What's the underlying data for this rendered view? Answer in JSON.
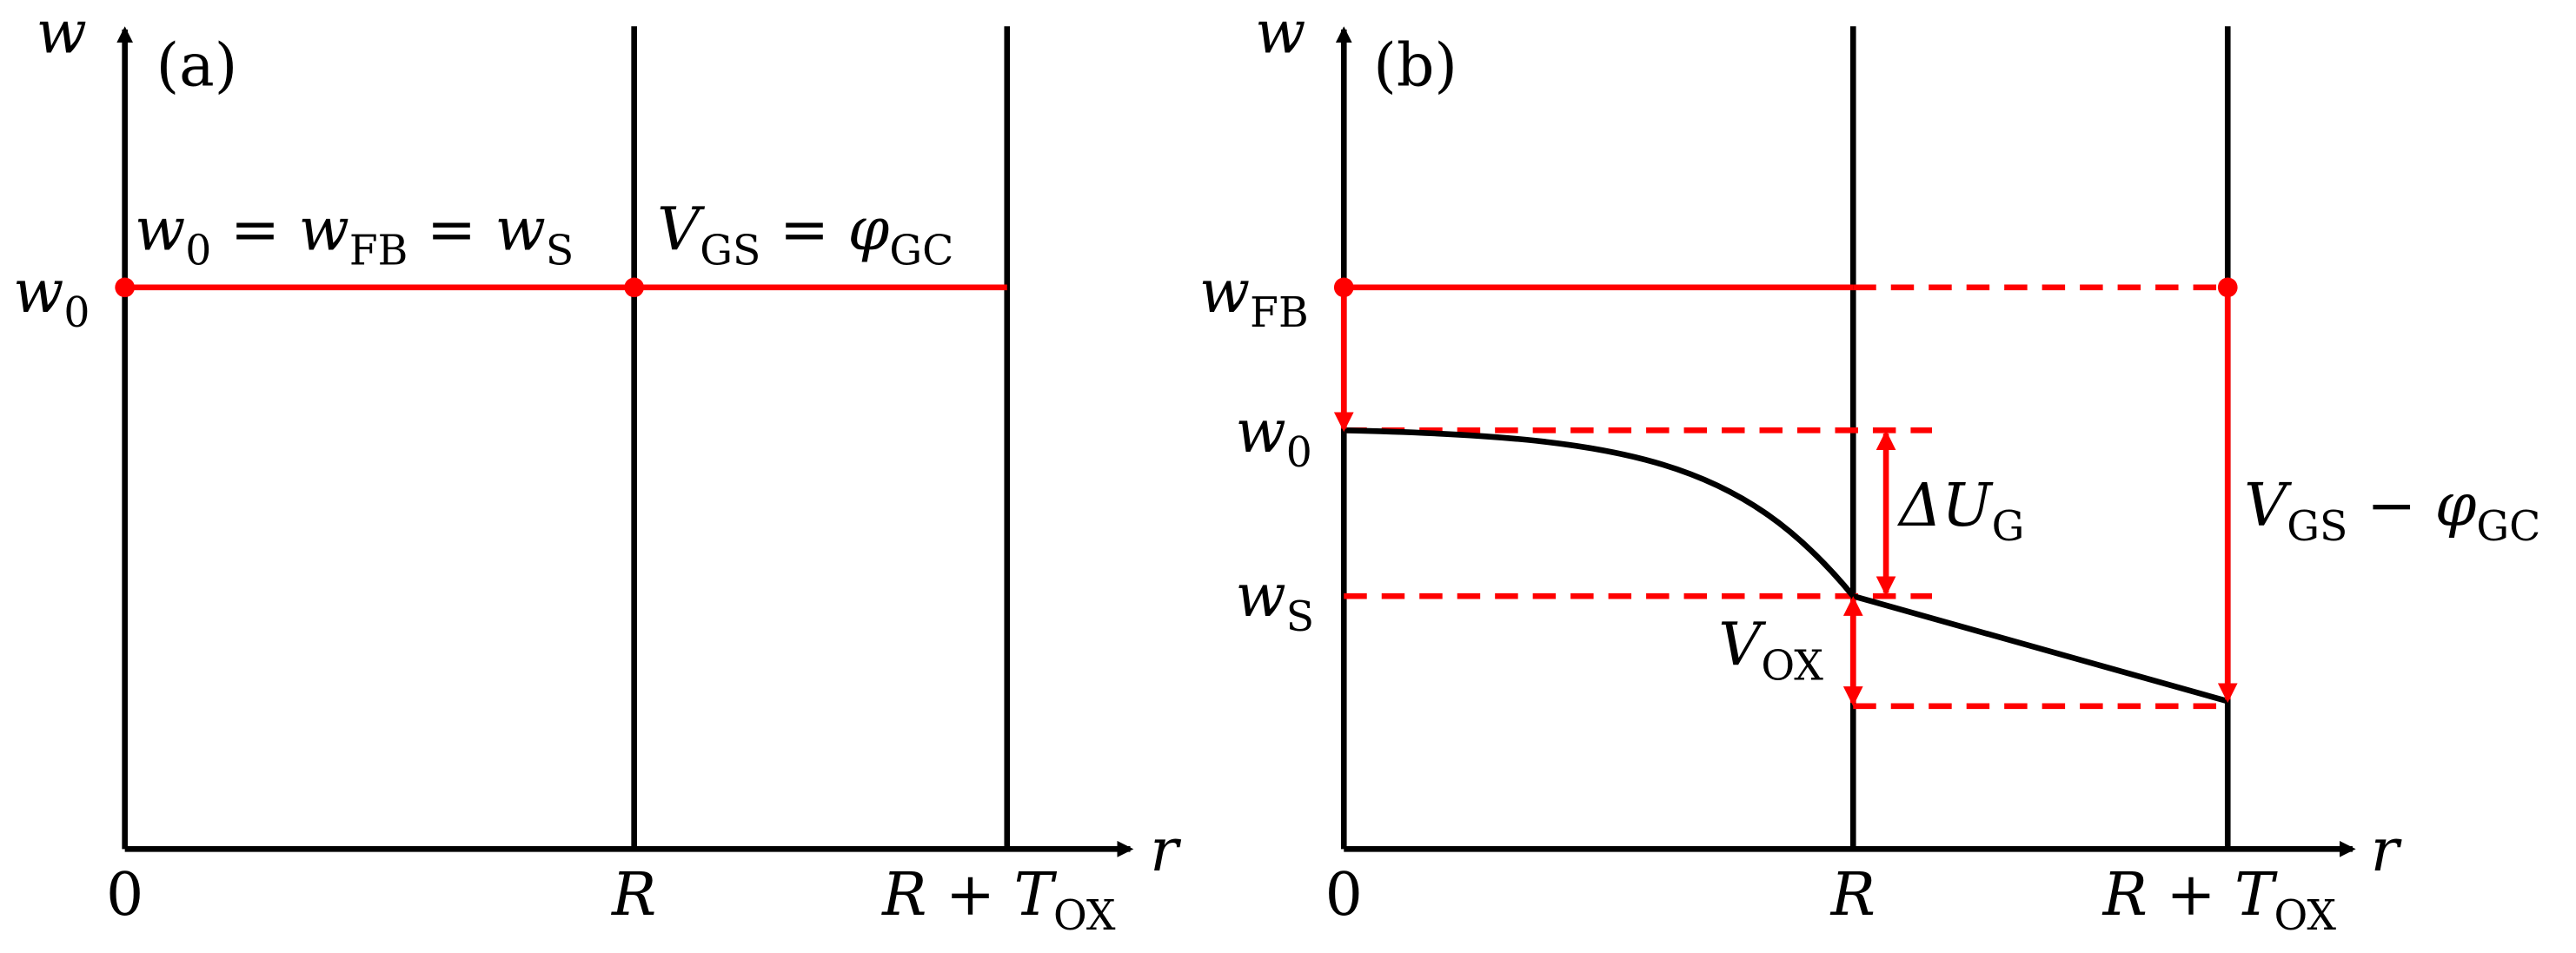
{
  "panel_a": {
    "tag": "(a)",
    "y_axis": "w",
    "x_axis": "r",
    "ticks": {
      "origin": "0",
      "r": "R",
      "outer": [
        "R",
        " + ",
        "T",
        "OX"
      ]
    },
    "level": [
      "w",
      "0"
    ],
    "equation": [
      "w",
      "0",
      " = ",
      "w",
      "FB",
      " = ",
      "w",
      "S"
    ],
    "relation": [
      "V",
      "GS",
      " = ",
      "φ",
      "GC"
    ]
  },
  "panel_b": {
    "tag": "(b)",
    "y_axis": "w",
    "x_axis": "r",
    "ticks": {
      "origin": "0",
      "r": "R",
      "outer": [
        "R",
        " + ",
        "T",
        "OX"
      ]
    },
    "levels": {
      "flat_band": [
        "w",
        "FB"
      ],
      "center": [
        "w",
        "0"
      ],
      "surface": [
        "w",
        "S"
      ]
    },
    "delta_u": [
      "ΔU",
      "G"
    ],
    "v_ox": [
      "V",
      "OX"
    ],
    "gate": [
      "V",
      "GS",
      " − ",
      "φ",
      "GC"
    ]
  }
}
